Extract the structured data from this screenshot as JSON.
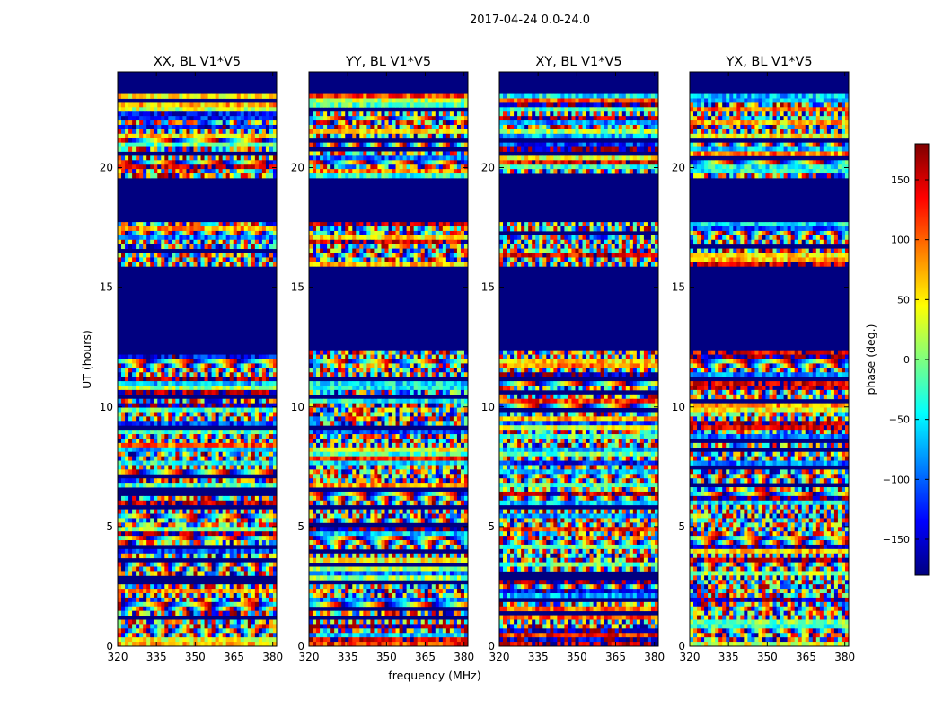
{
  "figure": {
    "suptitle": "2017-04-24 0.0-24.0",
    "xlabel": "frequency (MHz)",
    "ylabel": "UT (hours)"
  },
  "colorbar": {
    "label": "phase (deg.)",
    "colormap": "jet",
    "range": [
      -180,
      180
    ],
    "ticks": [
      -150,
      -100,
      -50,
      0,
      50,
      100,
      150
    ],
    "tick_labels": [
      "−150",
      "−100",
      "−50",
      "0",
      "50",
      "100",
      "150"
    ],
    "colors": [
      "#00007f",
      "#0000ff",
      "#007fff",
      "#00ffff",
      "#7fff7f",
      "#ffff00",
      "#ff7f00",
      "#ff0000",
      "#7f0000"
    ]
  },
  "chart_data": [
    {
      "type": "heatmap",
      "title": "XX, BL V1*V5",
      "x_ticks": [
        320,
        335,
        350,
        365,
        380
      ],
      "y_ticks": [
        0,
        5,
        10,
        15,
        20
      ],
      "xlim": [
        320,
        381.5
      ],
      "ylim": [
        0,
        24
      ],
      "value": "phase (deg.)",
      "value_range": [
        -180,
        180
      ],
      "flagged_hours": [
        [
          12.4,
          15.8
        ],
        [
          17.8,
          19.5
        ],
        [
          23.1,
          24.0
        ]
      ]
    },
    {
      "type": "heatmap",
      "title": "YY, BL V1*V5",
      "x_ticks": [
        320,
        335,
        350,
        365,
        380
      ],
      "y_ticks": [
        0,
        5,
        10,
        15,
        20
      ],
      "xlim": [
        320,
        381.5
      ],
      "ylim": [
        0,
        24
      ],
      "value": "phase (deg.)",
      "value_range": [
        -180,
        180
      ],
      "flagged_hours": [
        [
          12.4,
          15.8
        ],
        [
          17.8,
          19.5
        ],
        [
          23.1,
          24.0
        ]
      ]
    },
    {
      "type": "heatmap",
      "title": "XY, BL V1*V5",
      "x_ticks": [
        320,
        335,
        350,
        365,
        380
      ],
      "y_ticks": [
        0,
        5,
        10,
        15,
        20
      ],
      "xlim": [
        320,
        381.5
      ],
      "ylim": [
        0,
        24
      ],
      "value": "phase (deg.)",
      "value_range": [
        -180,
        180
      ],
      "flagged_hours": [
        [
          12.4,
          15.8
        ],
        [
          17.8,
          19.5
        ],
        [
          23.1,
          24.0
        ]
      ]
    },
    {
      "type": "heatmap",
      "title": "YX, BL V1*V5",
      "x_ticks": [
        320,
        335,
        350,
        365,
        380
      ],
      "y_ticks": [
        0,
        5,
        10,
        15,
        20
      ],
      "xlim": [
        320,
        381.5
      ],
      "ylim": [
        0,
        24
      ],
      "value": "phase (deg.)",
      "value_range": [
        -180,
        180
      ],
      "flagged_hours": [
        [
          12.4,
          15.8
        ],
        [
          17.8,
          19.5
        ],
        [
          23.1,
          24.0
        ]
      ]
    }
  ]
}
